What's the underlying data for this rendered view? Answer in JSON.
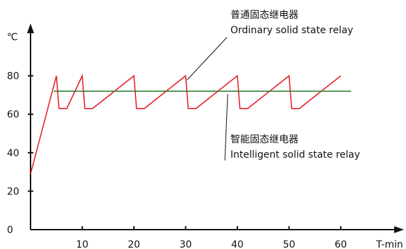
{
  "chart_data": {
    "type": "line",
    "x_unit_label": "T-min",
    "y_unit_label": "℃",
    "xlim": [
      0,
      71
    ],
    "ylim": [
      0,
      90
    ],
    "x_ticks": [
      10,
      20,
      30,
      40,
      50,
      60
    ],
    "y_ticks": [
      0,
      20,
      40,
      60,
      80
    ],
    "series": [
      {
        "name": "",
        "color": "#e8202a",
        "points": [
          [
            0,
            29
          ],
          [
            5,
            80
          ],
          [
            5.5,
            63
          ],
          [
            7,
            63
          ],
          [
            10,
            80
          ],
          [
            10.5,
            63
          ],
          [
            12,
            63
          ],
          [
            20,
            80
          ],
          [
            20.5,
            63
          ],
          [
            22,
            63
          ],
          [
            30,
            80
          ],
          [
            30.5,
            63
          ],
          [
            32,
            63
          ],
          [
            40,
            80
          ],
          [
            40.5,
            63
          ],
          [
            42,
            63
          ],
          [
            50,
            80
          ],
          [
            50.5,
            63
          ],
          [
            52,
            63
          ],
          [
            60,
            80
          ]
        ]
      },
      {
        "name": "",
        "color": "#2e7d32",
        "points": [
          [
            4.5,
            72
          ],
          [
            62,
            72
          ]
        ]
      }
    ],
    "annotations": [
      {
        "line1": "普通固态继电器",
        "line2": "Ordinary solid state relay",
        "target": [
          30,
          80
        ]
      },
      {
        "line1": "智能固态继电器",
        "line2": "Intelligent solid state relay",
        "target": [
          38,
          72
        ]
      }
    ],
    "grid": false,
    "legend": "none"
  }
}
